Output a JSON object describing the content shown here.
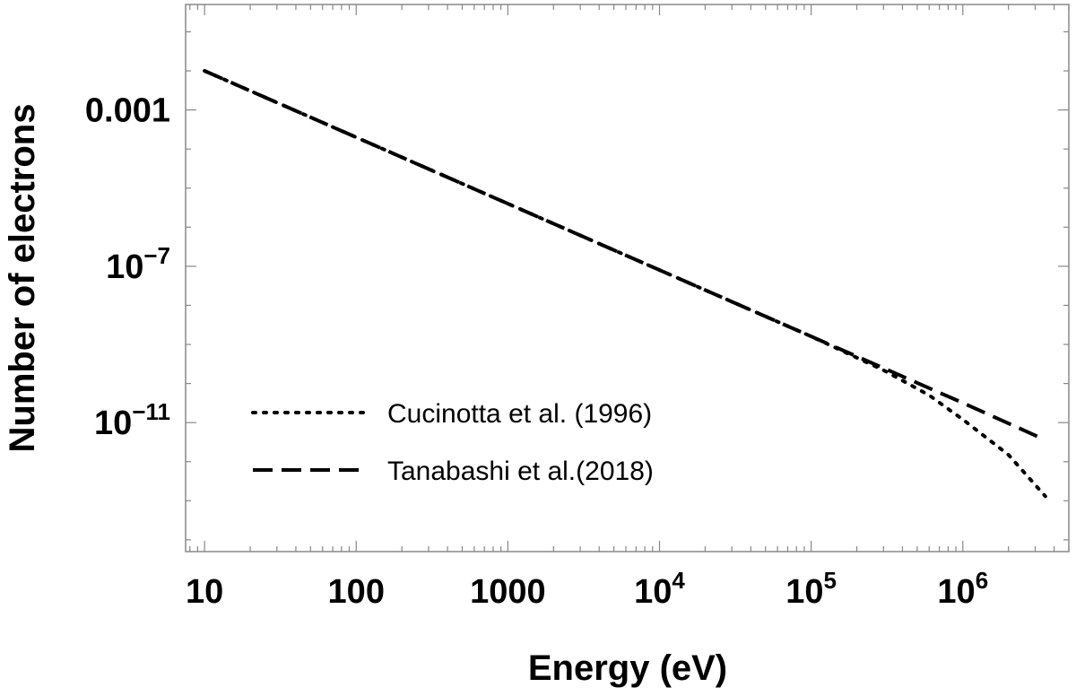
{
  "chart_data": {
    "type": "line",
    "title": "",
    "xlabel": "Energy (eV)",
    "ylabel": "Number of electrons",
    "xscale": "log",
    "yscale": "log",
    "xlim": [
      7.5,
      5000000
    ],
    "ylim": [
      5e-15,
      0.5
    ],
    "x_ticks": [
      {
        "value": 10,
        "base": "10",
        "exp": ""
      },
      {
        "value": 100,
        "base": "100",
        "exp": ""
      },
      {
        "value": 1000,
        "base": "1000",
        "exp": ""
      },
      {
        "value": 10000,
        "base": "10",
        "exp": "4"
      },
      {
        "value": 100000,
        "base": "10",
        "exp": "5"
      },
      {
        "value": 1000000,
        "base": "10",
        "exp": "6"
      }
    ],
    "y_ticks": [
      {
        "value": 0.001,
        "base": "0.001",
        "exp": ""
      },
      {
        "value": 1e-07,
        "base": "10",
        "exp": "−7"
      },
      {
        "value": 1e-11,
        "base": "10",
        "exp": "−11"
      }
    ],
    "legend_position": "lower-left",
    "series": [
      {
        "name": "Cucinotta et al. (1996)",
        "style": "dotted",
        "x": [
          10,
          100,
          1000,
          10000,
          100000,
          300000,
          600000,
          1000000,
          2000000,
          3500000
        ],
        "y": [
          0.01,
          0.0002,
          4e-06,
          8e-08,
          1.6e-09,
          2.2e-10,
          5e-11,
          1.2e-11,
          1.5e-12,
          1.3e-13
        ]
      },
      {
        "name": "Tanabashi et al.(2018)",
        "style": "dashed",
        "x": [
          10,
          100,
          1000,
          10000,
          100000,
          1000000,
          3500000
        ],
        "y": [
          0.01,
          0.0002,
          4e-06,
          8e-08,
          1.6e-09,
          3.2e-11,
          3.6e-12
        ]
      }
    ]
  }
}
